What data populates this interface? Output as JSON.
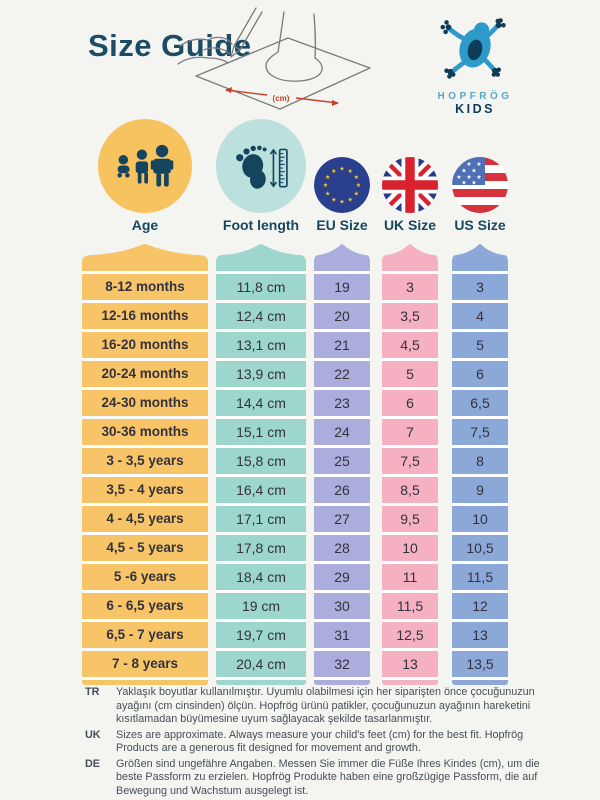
{
  "title": "Size Guide",
  "brand": {
    "name": "HOPFRÖG",
    "sub": "KIDS"
  },
  "illustration": {
    "unit_label": "(cm)"
  },
  "columns": {
    "age": {
      "label": "Age",
      "icon": "family-icon"
    },
    "foot": {
      "label": "Foot length",
      "icon": "footprint-ruler-icon"
    },
    "eu": {
      "label": "EU Size",
      "icon": "eu-flag-icon"
    },
    "uk": {
      "label": "UK Size",
      "icon": "uk-flag-icon"
    },
    "us": {
      "label": "US Size",
      "icon": "us-flag-icon"
    }
  },
  "rows": [
    {
      "age": "8-12 months",
      "foot": "11,8 cm",
      "eu": "19",
      "uk": "3",
      "us": "3"
    },
    {
      "age": "12-16 months",
      "foot": "12,4 cm",
      "eu": "20",
      "uk": "3,5",
      "us": "4"
    },
    {
      "age": "16-20 months",
      "foot": "13,1 cm",
      "eu": "21",
      "uk": "4,5",
      "us": "5"
    },
    {
      "age": "20-24 months",
      "foot": "13,9 cm",
      "eu": "22",
      "uk": "5",
      "us": "6"
    },
    {
      "age": "24-30 months",
      "foot": "14,4 cm",
      "eu": "23",
      "uk": "6",
      "us": "6,5"
    },
    {
      "age": "30-36 months",
      "foot": "15,1 cm",
      "eu": "24",
      "uk": "7",
      "us": "7,5"
    },
    {
      "age": "3 - 3,5 years",
      "foot": "15,8 cm",
      "eu": "25",
      "uk": "7,5",
      "us": "8"
    },
    {
      "age": "3,5 - 4 years",
      "foot": "16,4 cm",
      "eu": "26",
      "uk": "8,5",
      "us": "9"
    },
    {
      "age": "4 - 4,5 years",
      "foot": "17,1 cm",
      "eu": "27",
      "uk": "9,5",
      "us": "10"
    },
    {
      "age": "4,5 - 5 years",
      "foot": "17,8 cm",
      "eu": "28",
      "uk": "10",
      "us": "10,5"
    },
    {
      "age": "5 -6 years",
      "foot": "18,4 cm",
      "eu": "29",
      "uk": "11",
      "us": "11,5"
    },
    {
      "age": "6 - 6,5 years",
      "foot": "19 cm",
      "eu": "30",
      "uk": "11,5",
      "us": "12"
    },
    {
      "age": "6,5 - 7 years",
      "foot": "19,7 cm",
      "eu": "31",
      "uk": "12,5",
      "us": "13"
    },
    {
      "age": "7 - 8 years",
      "foot": "20,4 cm",
      "eu": "32",
      "uk": "13",
      "us": "13,5"
    }
  ],
  "notes": [
    {
      "lang": "TR",
      "text": "Yaklaşık boyutlar kullanılmıştır. Uyumlu olabilmesi için her siparişten önce çocuğunuzun ayağını (cm cinsinden) ölçün. Hopfrög ürünü patikler, çocuğunuzun ayağının hareketini kısıtlamadan büyümesine uyum sağlayacak şekilde tasarlanmıştır."
    },
    {
      "lang": "UK",
      "text": "Sizes are approximate. Always measure your child's feet (cm) for the best fit. Hopfrög Products are a generous fit designed for movement and growth."
    },
    {
      "lang": "DE",
      "text": "Größen sind ungefähre Angaben. Messen Sie immer die Füße Ihres Kindes (cm), um die beste Passform zu erzielen. Hopfrög Produkte haben eine großzügige Passform, die auf Bewegung und Wachstum ausgelegt ist."
    }
  ],
  "colors": {
    "age": "#F8C468",
    "foot": "#9CD6CD",
    "eu": "#ABAEDC",
    "uk": "#F5B0C2",
    "us": "#8CA8D9",
    "age_circle": "#F7C35F",
    "foot_circle": "#BCE0DD",
    "title": "#1C4B66",
    "accent_red": "#C8402B",
    "brand_blue": "#2D9AC9",
    "brand_navy": "#0E3B57"
  }
}
